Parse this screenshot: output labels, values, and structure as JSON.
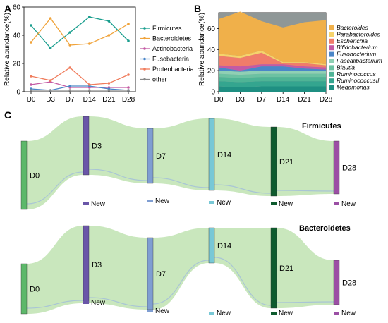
{
  "panels": {
    "a": "A",
    "b": "B",
    "c": "C"
  },
  "chart_data": [
    {
      "type": "line",
      "panel": "A",
      "ylabel": "Relative abundance(%)",
      "xlabel": "",
      "categories": [
        "D0",
        "D3",
        "D7",
        "D14",
        "D21",
        "D28"
      ],
      "ylim": [
        0,
        60
      ],
      "yticks": [
        0,
        20,
        40,
        60
      ],
      "legend": "right",
      "series": [
        {
          "name": "Firmicutes",
          "color": "#1a9e8e",
          "values": [
            47,
            31,
            42,
            53,
            50,
            36
          ]
        },
        {
          "name": "Bacteroidetes",
          "color": "#f0a33a",
          "values": [
            35,
            52,
            33,
            34,
            40,
            48
          ]
        },
        {
          "name": "Actinobacteria",
          "color": "#c45aa4",
          "values": [
            5,
            7,
            3,
            3,
            3,
            3
          ]
        },
        {
          "name": "Fusobacteria",
          "color": "#4a86c8",
          "values": [
            2,
            1,
            4,
            4,
            2,
            1
          ]
        },
        {
          "name": "Proteobacteria",
          "color": "#f07c5c",
          "values": [
            11,
            8,
            17,
            5,
            6,
            12
          ]
        },
        {
          "name": "other",
          "color": "#8a8a8a",
          "values": [
            1,
            1,
            1,
            1,
            1,
            1
          ]
        }
      ]
    },
    {
      "type": "area",
      "panel": "B",
      "ylabel": "Relative abundance(%)",
      "categories": [
        "D0",
        "D3",
        "D7",
        "D14",
        "D21",
        "D28"
      ],
      "ylim": [
        0,
        75
      ],
      "yticks": [
        0,
        20,
        40,
        60
      ],
      "legend": "right",
      "series": [
        {
          "name": "Megamonas",
          "color": "#1f8f82",
          "values": [
            5,
            4,
            5,
            5,
            5,
            5
          ]
        },
        {
          "name": "RuminococcusII",
          "color": "#34a58f",
          "values": [
            5,
            5,
            5,
            5,
            5,
            5
          ]
        },
        {
          "name": "Ruminococcus",
          "color": "#4fb496",
          "values": [
            4,
            4,
            4,
            4,
            4,
            4
          ]
        },
        {
          "name": "Blautia",
          "color": "#6cc2a2",
          "values": [
            3,
            3,
            3,
            3,
            3,
            3
          ]
        },
        {
          "name": "Faecalibacterium",
          "color": "#8fd0b4",
          "values": [
            3,
            3,
            3,
            3,
            3,
            3
          ]
        },
        {
          "name": "Fusobacterium",
          "color": "#4a86c8",
          "values": [
            3,
            1,
            4,
            4,
            2,
            1
          ]
        },
        {
          "name": "Bifidobacterium",
          "color": "#c45aa4",
          "values": [
            2,
            4,
            2,
            2,
            2,
            2
          ]
        },
        {
          "name": "Escherichia",
          "color": "#f07c6a",
          "values": [
            9,
            8,
            11,
            1,
            3,
            2
          ]
        },
        {
          "name": "Parabacteroides",
          "color": "#f6d36b",
          "values": [
            2,
            2,
            2,
            1,
            1,
            1
          ]
        },
        {
          "name": "Bacteroides",
          "color": "#f0b04a",
          "values": [
            33,
            42,
            28,
            33,
            38,
            42
          ]
        }
      ]
    },
    {
      "type": "sankey",
      "panel": "C",
      "groups": [
        {
          "title": "Firmicutes",
          "color": "#bfe3b1",
          "nodes": [
            {
              "label": "D0",
              "color": "#5db86a",
              "new_label": ""
            },
            {
              "label": "D3",
              "color": "#6a56a8",
              "new_label": "New"
            },
            {
              "label": "D7",
              "color": "#7f9ed2",
              "new_label": "New"
            },
            {
              "label": "D14",
              "color": "#78c8d6",
              "new_label": "New"
            },
            {
              "label": "D21",
              "color": "#0e5b2e",
              "new_label": "New"
            },
            {
              "label": "D28",
              "color": "#9b4fa4",
              "new_label": "New"
            }
          ]
        },
        {
          "title": "Bacteroidetes",
          "color": "#bfe3b1",
          "nodes": [
            {
              "label": "D0",
              "color": "#5db86a",
              "new_label": ""
            },
            {
              "label": "D3",
              "color": "#6a56a8",
              "new_label": "New"
            },
            {
              "label": "D7",
              "color": "#7f9ed2",
              "new_label": "New"
            },
            {
              "label": "D14",
              "color": "#78c8d6",
              "new_label": "New"
            },
            {
              "label": "D21",
              "color": "#0e5b2e",
              "new_label": "New"
            },
            {
              "label": "D28",
              "color": "#9b4fa4",
              "new_label": "New"
            }
          ]
        }
      ]
    }
  ]
}
